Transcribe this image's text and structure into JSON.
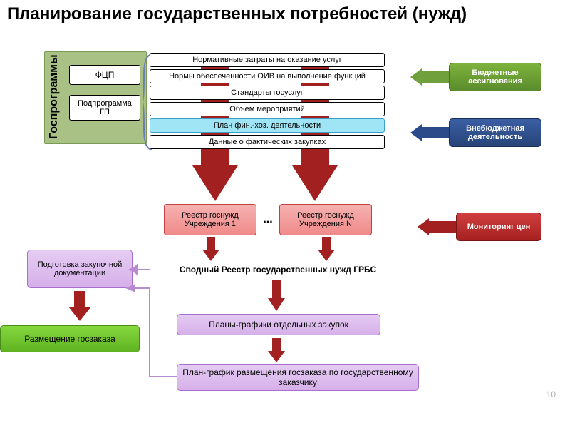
{
  "title": "Планирование государственных потребностей (нужд)",
  "title_fontsize": 24,
  "sidebar": {
    "label": "Госпрограммы",
    "bg": "#a9c185",
    "border": "#7a9a55",
    "items": [
      "ФЦП",
      "Подпрограмма ГП"
    ]
  },
  "stack": {
    "rows": [
      {
        "text": "Нормативные затраты на оказание услуг",
        "bg": "#ffffff",
        "border": "#000000"
      },
      {
        "text": "Нормы обеспеченности ОИВ на выполнение функций",
        "bg": "#ffffff",
        "border": "#000000"
      },
      {
        "text": "Стандарты госуслуг",
        "bg": "#ffffff",
        "border": "#000000"
      },
      {
        "text": "Объем мероприятий",
        "bg": "#ffffff",
        "border": "#000000"
      },
      {
        "text": "План фин.-хоз. деятельности",
        "bg": "#9fe5f5",
        "border": "#3aa0c8"
      },
      {
        "text": "Данные о фактических закупках",
        "bg": "#ffffff",
        "border": "#000000"
      }
    ],
    "bracket_color": "#6b7fb5"
  },
  "right": {
    "budget": {
      "text": "Бюджетные ассигнования",
      "bg1": "#7db33d",
      "bg2": "#5a8c2c",
      "border": "#4a7020"
    },
    "offbudget": {
      "text": "Внебюджетная деятельность",
      "bg1": "#3b5fa4",
      "bg2": "#274378",
      "border": "#1b2f55"
    },
    "monitor": {
      "text": "Мониторинг цен",
      "bg1": "#d13f3f",
      "bg2": "#a52020",
      "border": "#7a1515"
    }
  },
  "registry": {
    "r1": "Реестр госнужд Учреждения 1",
    "rn": "Реестр госнужд Учреждения N",
    "dots": "...",
    "box": {
      "bg1": "#f6b1b1",
      "bg2": "#f08a8a",
      "border": "#c04343"
    }
  },
  "summary_line": "Сводный Реестр государственных нужд ГРБС",
  "purple": {
    "prep": "Подготовка закупочной документации",
    "plans": "Планы-графики отдельных закупок",
    "final": "План-график размещения госзаказа по государственному заказчику",
    "box": {
      "bg1": "#e5ccf2",
      "bg2": "#d6b0ea",
      "border": "#a86fcf"
    }
  },
  "green_action": {
    "text": "Размещение госзаказа",
    "bg1": "#86d83e",
    "bg2": "#5fb321",
    "border": "#4a8c18"
  },
  "arrows": {
    "red": "#a22020",
    "blue": "#2b4a8a",
    "green": "#6fa03c",
    "connector": "#b88ad0"
  },
  "pagenum": {
    "text": "10",
    "color": "#b0b0b0"
  }
}
